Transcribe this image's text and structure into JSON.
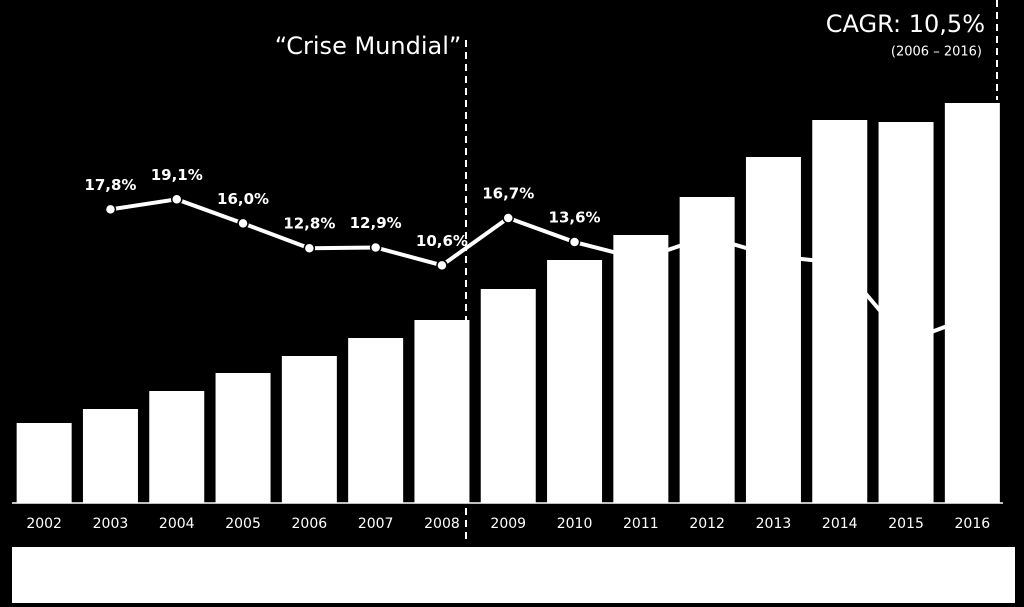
{
  "chart_data": {
    "type": "bar",
    "categories": [
      "2002",
      "2003",
      "2004",
      "2005",
      "2006",
      "2007",
      "2008",
      "2009",
      "2010",
      "2011",
      "2012",
      "2013",
      "2014",
      "2015",
      "2016"
    ],
    "series": [
      {
        "type": "bar",
        "color": "#ffffff",
        "values": [
          80,
          94,
          112,
          130,
          147,
          165,
          183,
          214,
          243,
          268,
          306,
          346,
          383,
          381,
          400
        ]
      },
      {
        "type": "line",
        "axis": "y2",
        "color": "#ffffff",
        "values": [
          null,
          17.8,
          19.1,
          16.0,
          12.8,
          12.9,
          10.6,
          16.7,
          13.6,
          11.4,
          14.3,
          11.8,
          10.9,
          0.8,
          4.0
        ],
        "value_labels": [
          null,
          "17,8%",
          "19,1%",
          "16,0%",
          "12,8%",
          "12,9%",
          "10,6%",
          "16,7%",
          "13,6%",
          null,
          null,
          null,
          null,
          null,
          null
        ]
      }
    ],
    "ylim": [
      0,
      400
    ],
    "y2lim": [
      -20,
      31.5
    ],
    "annotations": [
      "“Crise Mundial”",
      "CAGR: 10,5%",
      "(2006 – 2016)"
    ]
  }
}
